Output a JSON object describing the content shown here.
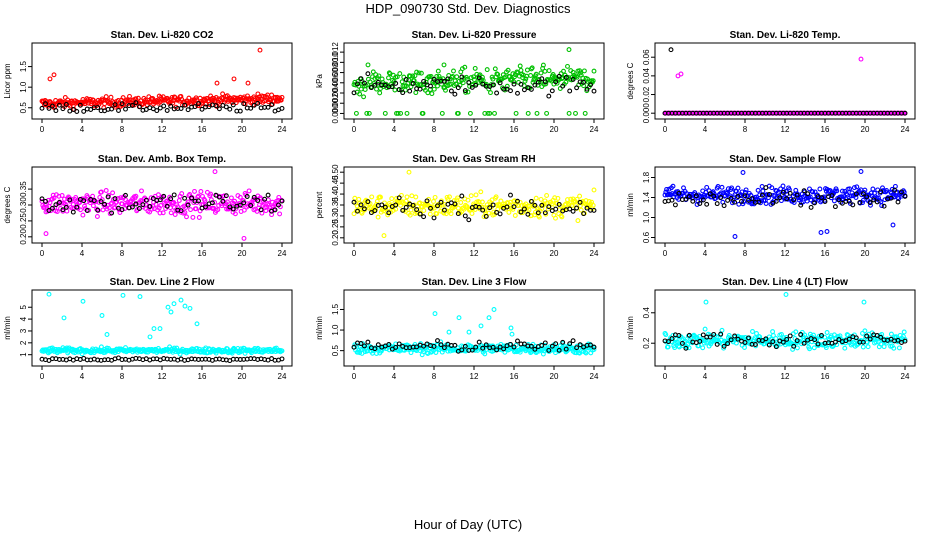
{
  "title": "HDP_090730  Std. Dev. Diagnostics",
  "xlabel": "Hour of Day (UTC)",
  "chart_data": [
    {
      "type": "scatter",
      "title": "Stan. Dev. Li-820 CO2",
      "ylabel": "Licor ppm",
      "color": "#ff0000",
      "xlim": [
        0,
        24
      ],
      "xticks": [
        0,
        4,
        8,
        12,
        16,
        20,
        24
      ],
      "ylim": [
        0.3,
        2.0
      ],
      "yticks": [
        0.5,
        1.0,
        1.5
      ],
      "ytick_labels": [
        "0.5",
        "1.0",
        "1.5"
      ],
      "base": 0.6,
      "spread": 0.12,
      "trend": 0.12,
      "black_base": 0.5,
      "black_spread": 0.1,
      "outliers": [
        [
          0.8,
          1.2
        ],
        [
          1.2,
          1.3
        ],
        [
          17.5,
          1.1
        ],
        [
          21.8,
          1.9
        ],
        [
          19.2,
          1.2
        ],
        [
          20.6,
          1.1
        ]
      ]
    },
    {
      "type": "scatter",
      "title": "Stan. Dev. Li-820 Pressure",
      "ylabel": "kPa",
      "color": "#00c000",
      "xlim": [
        0,
        24
      ],
      "xticks": [
        0,
        4,
        8,
        12,
        16,
        20,
        24
      ],
      "ylim": [
        -0.0005,
        0.0132
      ],
      "yticks": [
        0.0,
        0.002,
        0.004,
        0.006,
        0.008,
        0.01,
        0.012
      ],
      "ytick_labels": [
        "0.000",
        "0.002",
        "0.004",
        "0.006",
        "0.008",
        "0.010",
        "0.012"
      ],
      "base": 0.006,
      "spread": 0.0022,
      "trend": 0.0008,
      "black_base": 0.0055,
      "black_spread": 0.0018,
      "zero_band": 0.0,
      "outliers": [
        [
          21.5,
          0.0125
        ],
        [
          1.4,
          0.0095
        ],
        [
          9.0,
          0.0095
        ]
      ]
    },
    {
      "type": "scatter",
      "title": "Stan. Dev. Li-820 Temp.",
      "ylabel": "degrees C",
      "color": "#ff00ff",
      "xlim": [
        0,
        24
      ],
      "xticks": [
        0,
        4,
        8,
        12,
        16,
        20,
        24
      ],
      "ylim": [
        -0.003,
        0.072
      ],
      "yticks": [
        0.0,
        0.02,
        0.04,
        0.06
      ],
      "ytick_labels": [
        "0.000",
        "0.02",
        "0.04",
        "0.06"
      ],
      "base": 0.0,
      "spread": 0.0,
      "trend": 0.0,
      "black_base": 0.0,
      "black_spread": 0.0,
      "outliers": [
        [
          0.6,
          0.068
        ],
        [
          1.3,
          0.04
        ],
        [
          1.6,
          0.042
        ],
        [
          19.6,
          0.058
        ]
      ]
    },
    {
      "type": "scatter",
      "title": "Stan. Dev. Amb. Box Temp.",
      "ylabel": "degrees C",
      "color": "#ff00ff",
      "xlim": [
        0,
        24
      ],
      "xticks": [
        0,
        4,
        8,
        12,
        16,
        20,
        24
      ],
      "ylim": [
        0.19,
        0.41
      ],
      "yticks": [
        0.2,
        0.25,
        0.3,
        0.35
      ],
      "ytick_labels": [
        "0.20",
        "0.25",
        "0.30",
        "0.35"
      ],
      "base": 0.305,
      "spread": 0.035,
      "trend": 0.0,
      "black_base": 0.305,
      "black_spread": 0.035,
      "outliers": [
        [
          20.2,
          0.195
        ],
        [
          0.4,
          0.21
        ],
        [
          17.3,
          0.405
        ]
      ]
    },
    {
      "type": "scatter",
      "title": "Stan. Dev. Gas Stream RH",
      "ylabel": "percent",
      "color": "#ffff00",
      "xlim": [
        0,
        24
      ],
      "xticks": [
        0,
        4,
        8,
        12,
        16,
        20,
        24
      ],
      "ylim": [
        0.19,
        0.51
      ],
      "yticks": [
        0.2,
        0.25,
        0.3,
        0.35,
        0.4,
        0.45,
        0.5
      ],
      "ytick_labels": [
        "0.20",
        "0.25",
        "0.30",
        "0.35",
        "0.40",
        "0.45",
        "0.50"
      ],
      "base": 0.345,
      "spread": 0.05,
      "trend": 0.0,
      "black_base": 0.34,
      "black_spread": 0.045,
      "outliers": [
        [
          3.0,
          0.21
        ],
        [
          5.5,
          0.5
        ]
      ]
    },
    {
      "type": "scatter",
      "title": "Stan. Dev. Sample Flow",
      "ylabel": "ml/min",
      "color": "#0000ff",
      "xlim": [
        0,
        24
      ],
      "xticks": [
        0,
        4,
        8,
        12,
        16,
        20,
        24
      ],
      "ylim": [
        0.55,
        1.95
      ],
      "yticks": [
        0.6,
        1.0,
        1.4,
        1.8
      ],
      "ytick_labels": [
        "0.6",
        "1.0",
        "1.4",
        "1.8"
      ],
      "base": 1.45,
      "spread": 0.17,
      "trend": 0.0,
      "black_base": 1.35,
      "black_spread": 0.2,
      "outliers": [
        [
          7.0,
          0.62
        ],
        [
          15.6,
          0.7
        ],
        [
          16.2,
          0.72
        ],
        [
          22.8,
          0.85
        ],
        [
          19.6,
          1.92
        ],
        [
          7.8,
          1.9
        ]
      ]
    },
    {
      "type": "scatter",
      "title": "Stan. Dev. Line 2 Flow",
      "ylabel": "ml/min",
      "color": "#00ffff",
      "xlim": [
        0,
        24
      ],
      "xticks": [
        0,
        4,
        8,
        12,
        16,
        20,
        24
      ],
      "ylim": [
        0.3,
        6.2
      ],
      "yticks": [
        1,
        2,
        3,
        4,
        5
      ],
      "ytick_labels": [
        "1",
        "2",
        "3",
        "4",
        "5"
      ],
      "base": 1.35,
      "spread": 0.22,
      "trend": 0.0,
      "black_base": 0.6,
      "black_spread": 0.12,
      "outliers": [
        [
          0.7,
          6.1
        ],
        [
          2.2,
          4.1
        ],
        [
          4.1,
          5.5
        ],
        [
          6.0,
          4.3
        ],
        [
          8.1,
          6.0
        ],
        [
          9.8,
          5.9
        ],
        [
          11.2,
          3.2
        ],
        [
          11.8,
          3.2
        ],
        [
          12.6,
          5.0
        ],
        [
          12.9,
          4.6
        ],
        [
          13.2,
          5.3
        ],
        [
          13.9,
          5.6
        ],
        [
          14.3,
          5.1
        ],
        [
          14.8,
          4.9
        ],
        [
          15.5,
          3.6
        ],
        [
          6.5,
          2.7
        ],
        [
          10.8,
          2.5
        ]
      ]
    },
    {
      "type": "scatter",
      "title": "Stan. Dev. Line 3 Flow",
      "ylabel": "ml/min",
      "color": "#00ffff",
      "xlim": [
        0,
        24
      ],
      "xticks": [
        0,
        4,
        8,
        12,
        16,
        20,
        24
      ],
      "ylim": [
        0.2,
        1.9
      ],
      "yticks": [
        0.5,
        1.0,
        1.5
      ],
      "ytick_labels": [
        "0.5",
        "1.0",
        "1.5"
      ],
      "base": 0.55,
      "spread": 0.12,
      "trend": 0.0,
      "black_base": 0.6,
      "black_spread": 0.13,
      "outliers": [
        [
          10.5,
          1.3
        ],
        [
          11.5,
          0.95
        ],
        [
          12.7,
          1.1
        ],
        [
          13.5,
          1.3
        ],
        [
          14.0,
          1.5
        ],
        [
          9.5,
          0.95
        ],
        [
          15.8,
          0.9
        ],
        [
          8.1,
          1.4
        ],
        [
          15.7,
          1.05
        ]
      ]
    },
    {
      "type": "scatter",
      "title": "Stan. Dev. Line 4 (LT) Flow",
      "ylabel": "ml/min",
      "color": "#00ffff",
      "xlim": [
        0,
        24
      ],
      "xticks": [
        0,
        4,
        8,
        12,
        16,
        20,
        24
      ],
      "ylim": [
        0.07,
        0.53
      ],
      "yticks": [
        0.2,
        0.4
      ],
      "ytick_labels": [
        "0.2",
        "0.4"
      ],
      "base": 0.22,
      "spread": 0.055,
      "trend": 0.0,
      "black_base": 0.22,
      "black_spread": 0.05,
      "outliers": [
        [
          4.1,
          0.47
        ],
        [
          12.1,
          0.52
        ],
        [
          19.9,
          0.47
        ]
      ]
    }
  ]
}
